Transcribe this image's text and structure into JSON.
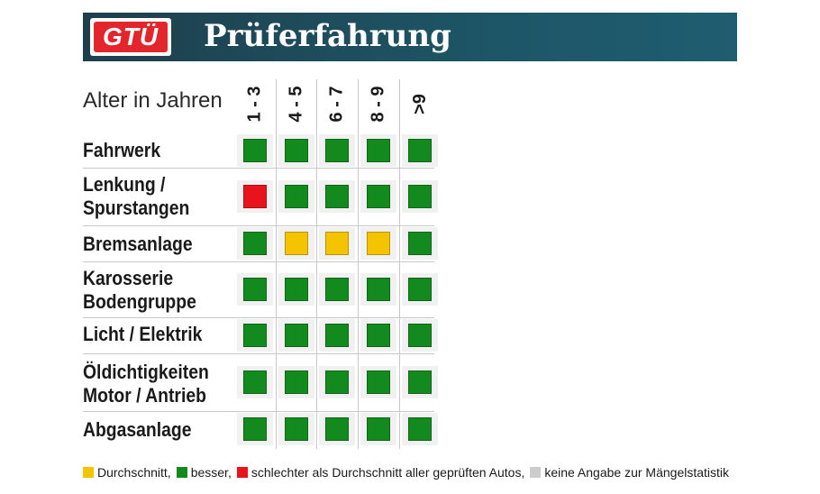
{
  "header": {
    "logo_text": "GTÜ",
    "title": "Prüferfahrung"
  },
  "age_label": "Alter in Jahren",
  "columns": [
    "1 - 3",
    "4 - 5",
    "6 - 7",
    "8 - 9",
    ">9"
  ],
  "colors": {
    "green": "#138a1e",
    "yellow": "#f5c400",
    "red": "#e8141b",
    "grey": "#cccccc"
  },
  "rows": [
    {
      "line1": "Fahrwerk",
      "line2": "",
      "ratings": [
        "green",
        "green",
        "green",
        "green",
        "green"
      ]
    },
    {
      "line1": "Lenkung /",
      "line2": "Spurstangen",
      "ratings": [
        "red",
        "green",
        "green",
        "green",
        "green"
      ]
    },
    {
      "line1": "Bremsanlage",
      "line2": "",
      "ratings": [
        "green",
        "yellow",
        "yellow",
        "yellow",
        "green"
      ]
    },
    {
      "line1": "Karosserie",
      "line2": "Bodengruppe",
      "ratings": [
        "green",
        "green",
        "green",
        "green",
        "green"
      ]
    },
    {
      "line1": "Licht / Elektrik",
      "line2": "",
      "ratings": [
        "green",
        "green",
        "green",
        "green",
        "green"
      ]
    },
    {
      "line1": "Öldichtigkeiten",
      "line2": "Motor / Antrieb",
      "ratings": [
        "green",
        "green",
        "green",
        "green",
        "green"
      ]
    },
    {
      "line1": "Abgasanlage",
      "line2": "",
      "ratings": [
        "green",
        "green",
        "green",
        "green",
        "green"
      ]
    }
  ],
  "legend": [
    {
      "color": "yellow",
      "label": "Durchschnitt,"
    },
    {
      "color": "green",
      "label": "besser,"
    },
    {
      "color": "red",
      "label": "schlechter als Durchschnitt aller geprüften Autos,"
    },
    {
      "color": "grey",
      "label": "keine Angabe zur Mängelstatistik"
    }
  ]
}
